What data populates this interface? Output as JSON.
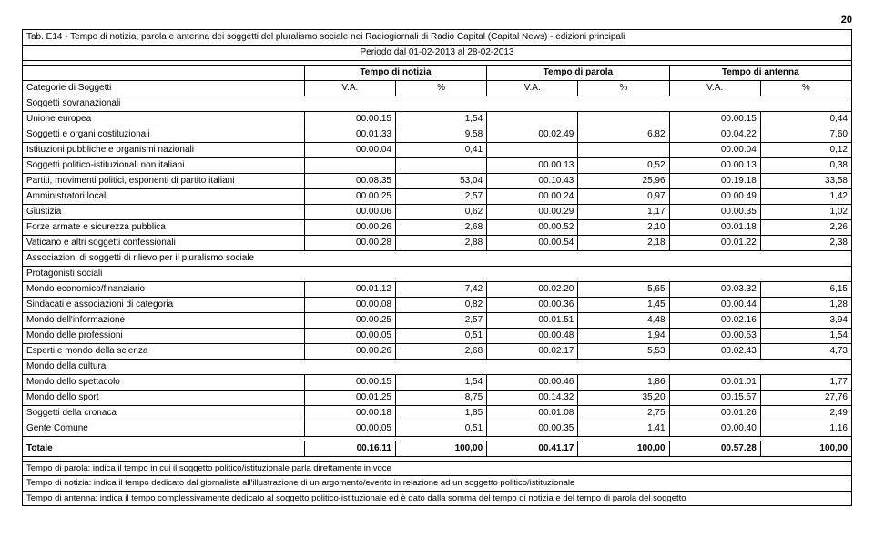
{
  "page_number": "20",
  "title": "Tab. E14 - Tempo di notizia, parola e antenna dei soggetti del pluralismo sociale nei Radiogiornali di Radio Capital (Capital News) - edizioni principali",
  "period": "Periodo dal 01-02-2013 al 28-02-2013",
  "group_headers": [
    "Tempo di notizia",
    "Tempo di parola",
    "Tempo di antenna"
  ],
  "row_header_label": "Categorie di Soggetti",
  "sub_headers": [
    "V.A.",
    "%",
    "V.A.",
    "%",
    "V.A.",
    "%"
  ],
  "section_labels": {
    "sovranazionali": "Soggetti sovranazionali",
    "associazioni": "Associazioni di soggetti di rilievo per il pluralismo sociale",
    "protagonisti": "Protagonisti sociali",
    "cultura": "Mondo della cultura"
  },
  "rows": [
    {
      "label": "Unione europea",
      "c": [
        "00.00.15",
        "1,54",
        "",
        "",
        "00.00.15",
        "0,44"
      ]
    },
    {
      "label": "Soggetti e organi costituzionali",
      "c": [
        "00.01.33",
        "9,58",
        "00.02.49",
        "6,82",
        "00.04.22",
        "7,60"
      ]
    },
    {
      "label": "Istituzioni pubbliche e organismi nazionali",
      "c": [
        "00.00.04",
        "0,41",
        "",
        "",
        "00.00.04",
        "0,12"
      ]
    },
    {
      "label": "Soggetti politico-istituzionali non italiani",
      "c": [
        "",
        "",
        "00.00.13",
        "0,52",
        "00.00.13",
        "0,38"
      ]
    },
    {
      "label": "Partiti, movimenti politici, esponenti di partito italiani",
      "c": [
        "00.08.35",
        "53,04",
        "00.10.43",
        "25,96",
        "00.19.18",
        "33,58"
      ]
    },
    {
      "label": "Amministratori locali",
      "c": [
        "00.00.25",
        "2,57",
        "00.00.24",
        "0,97",
        "00.00.49",
        "1,42"
      ]
    },
    {
      "label": "Giustizia",
      "c": [
        "00.00.06",
        "0,62",
        "00.00.29",
        "1,17",
        "00.00.35",
        "1,02"
      ]
    },
    {
      "label": "Forze armate e sicurezza pubblica",
      "c": [
        "00.00.26",
        "2,68",
        "00.00.52",
        "2,10",
        "00.01.18",
        "2,26"
      ]
    },
    {
      "label": "Vaticano e altri soggetti confessionali",
      "c": [
        "00.00.28",
        "2,88",
        "00.00.54",
        "2,18",
        "00.01.22",
        "2,38"
      ]
    }
  ],
  "rows2": [
    {
      "label": "Mondo economico/finanziario",
      "c": [
        "00.01.12",
        "7,42",
        "00.02.20",
        "5,65",
        "00.03.32",
        "6,15"
      ]
    },
    {
      "label": "Sindacati e associazioni di categoria",
      "c": [
        "00.00.08",
        "0,82",
        "00.00.36",
        "1,45",
        "00.00.44",
        "1,28"
      ]
    },
    {
      "label": "Mondo dell'informazione",
      "c": [
        "00.00.25",
        "2,57",
        "00.01.51",
        "4,48",
        "00.02.16",
        "3,94"
      ]
    },
    {
      "label": "Mondo delle professioni",
      "c": [
        "00.00.05",
        "0,51",
        "00.00.48",
        "1,94",
        "00.00.53",
        "1,54"
      ]
    },
    {
      "label": "Esperti e mondo della scienza",
      "c": [
        "00.00.26",
        "2,68",
        "00.02.17",
        "5,53",
        "00.02.43",
        "4,73"
      ]
    }
  ],
  "rows3": [
    {
      "label": "Mondo dello spettacolo",
      "c": [
        "00.00.15",
        "1,54",
        "00.00.46",
        "1,86",
        "00.01.01",
        "1,77"
      ]
    },
    {
      "label": "Mondo dello sport",
      "c": [
        "00.01.25",
        "8,75",
        "00.14.32",
        "35,20",
        "00.15.57",
        "27,76"
      ]
    },
    {
      "label": "Soggetti della cronaca",
      "c": [
        "00.00.18",
        "1,85",
        "00.01.08",
        "2,75",
        "00.01.26",
        "2,49"
      ]
    },
    {
      "label": "Gente Comune",
      "c": [
        "00.00.05",
        "0,51",
        "00.00.35",
        "1,41",
        "00.00.40",
        "1,16"
      ]
    }
  ],
  "total": {
    "label": "Totale",
    "c": [
      "00.16.11",
      "100,00",
      "00.41.17",
      "100,00",
      "00.57.28",
      "100,00"
    ]
  },
  "footnotes": [
    "Tempo di parola: indica il tempo in cui il soggetto politico/istituzionale parla direttamente in voce",
    "Tempo di notizia: indica il tempo dedicato dal giornalista all'illustrazione di un argomento/evento in relazione ad un soggetto politico/istituzionale",
    "Tempo di antenna: indica il tempo complessivamente dedicato al soggetto politico-istituzionale ed è dato dalla somma del tempo di notizia e del tempo di parola del soggetto"
  ]
}
